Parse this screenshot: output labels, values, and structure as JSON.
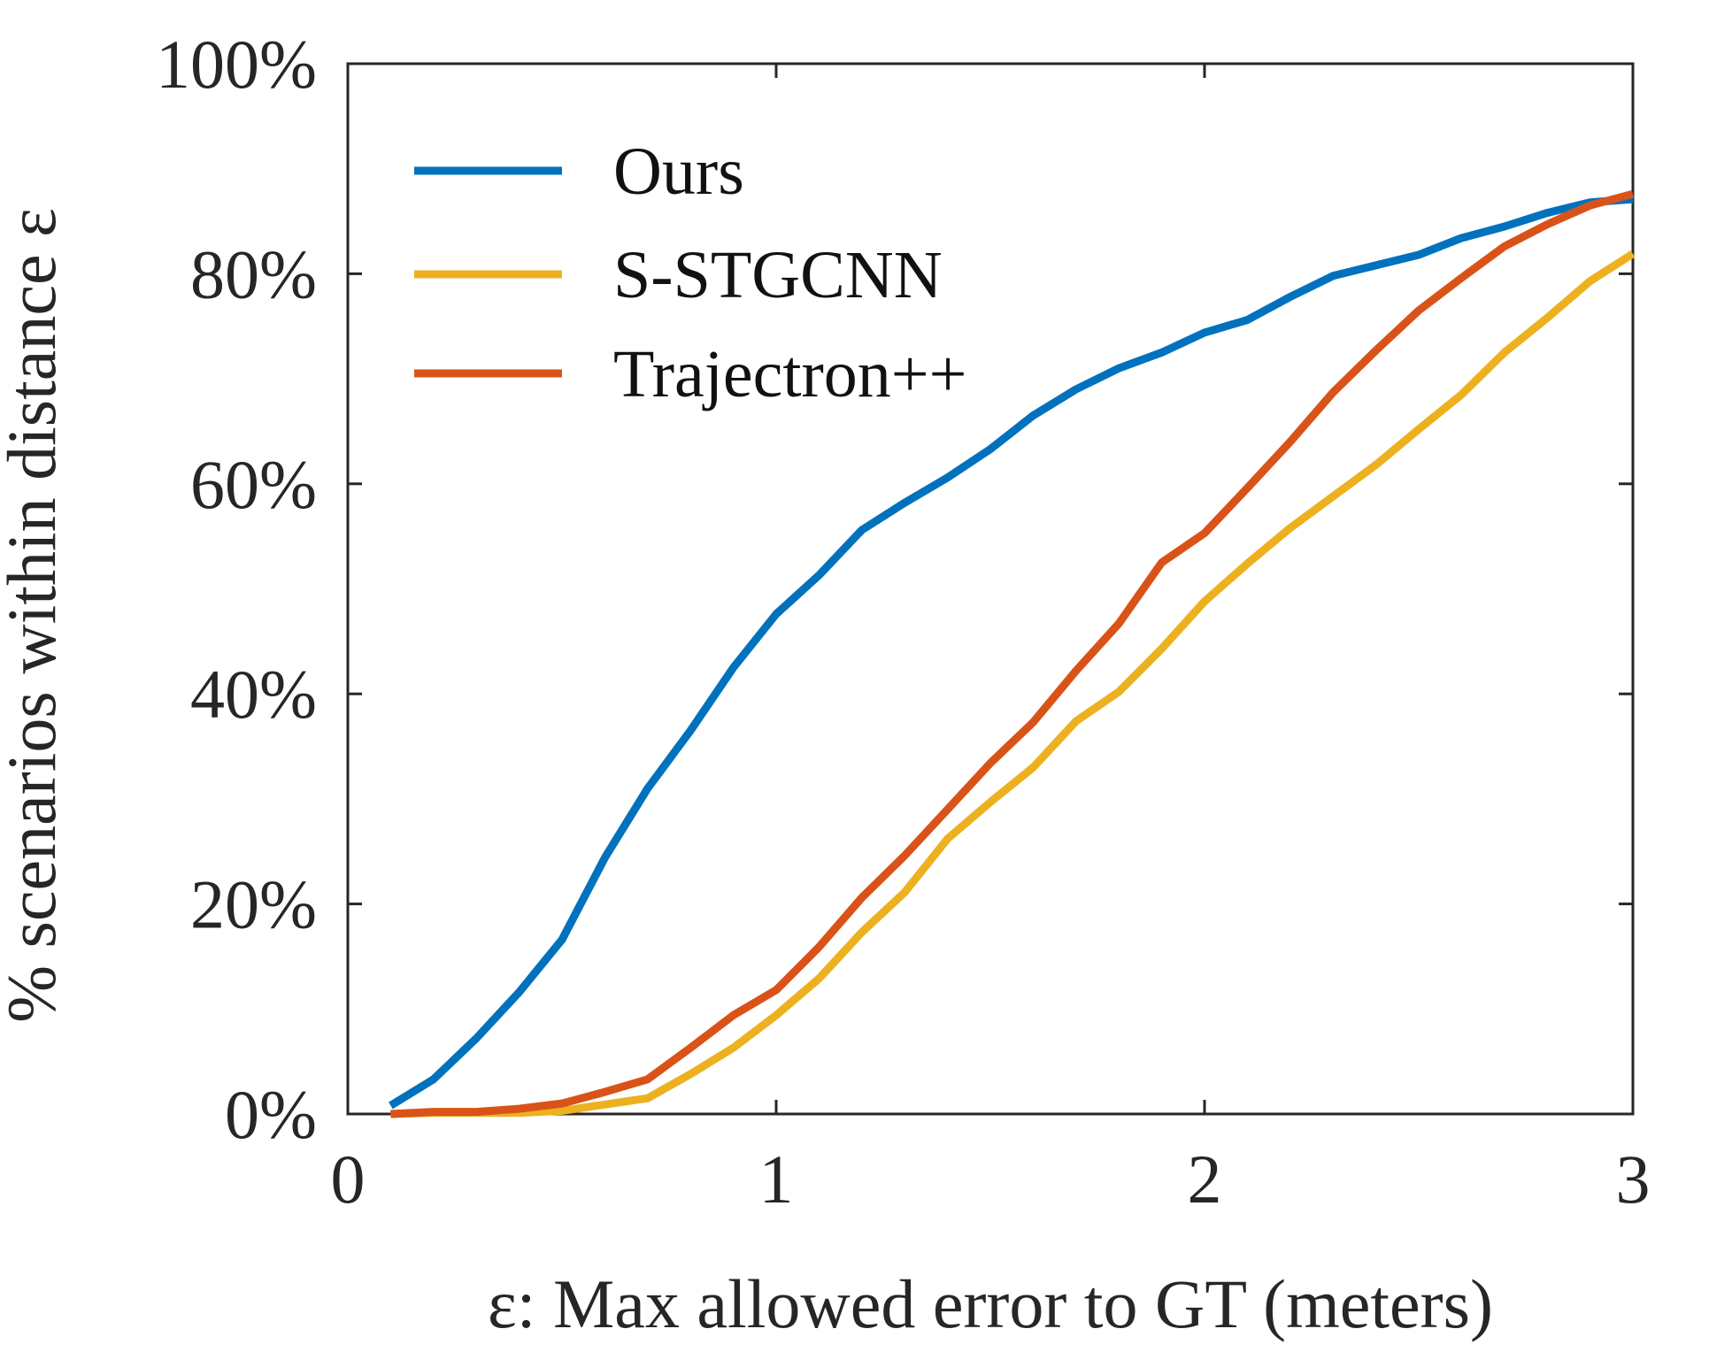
{
  "chart_data": {
    "type": "line",
    "title": "",
    "xlabel": "ε: Max allowed error to GT (meters)",
    "ylabel": "% scenarios within distance ε",
    "xlim": [
      0,
      3
    ],
    "ylim": [
      0,
      100
    ],
    "xticks": [
      0,
      1,
      2,
      3
    ],
    "xtick_labels": [
      "0",
      "1",
      "2",
      "3"
    ],
    "yticks": [
      0,
      20,
      40,
      60,
      80,
      100
    ],
    "ytick_labels": [
      "0%",
      "20%",
      "40%",
      "60%",
      "80%",
      "100%"
    ],
    "grid": false,
    "legend_position": "top-left",
    "x": [
      0.1,
      0.2,
      0.3,
      0.4,
      0.5,
      0.6,
      0.7,
      0.8,
      0.9,
      1.0,
      1.1,
      1.2,
      1.3,
      1.4,
      1.5,
      1.6,
      1.7,
      1.8,
      1.9,
      2.0,
      2.1,
      2.2,
      2.3,
      2.4,
      2.5,
      2.6,
      2.7,
      2.8,
      2.9,
      3.0
    ],
    "series": [
      {
        "name": "Ours",
        "color": "#0072bd",
        "values": [
          0.8,
          3.3,
          7.2,
          11.6,
          16.6,
          24.4,
          31.0,
          36.5,
          42.5,
          47.6,
          51.3,
          55.6,
          58.2,
          60.6,
          63.3,
          66.5,
          69.0,
          71.0,
          72.5,
          74.4,
          75.6,
          77.8,
          79.8,
          80.8,
          81.8,
          83.4,
          84.5,
          85.8,
          86.8,
          87.1
        ]
      },
      {
        "name": "S-STGCNN",
        "color": "#edb120",
        "values": [
          0.0,
          0.1,
          0.1,
          0.1,
          0.3,
          0.9,
          1.5,
          3.8,
          6.3,
          9.4,
          12.9,
          17.3,
          21.1,
          26.2,
          29.7,
          33.0,
          37.4,
          40.2,
          44.3,
          48.8,
          52.4,
          55.8,
          58.8,
          61.8,
          65.2,
          68.5,
          72.5,
          75.8,
          79.3,
          81.9
        ]
      },
      {
        "name": "Trajectron++",
        "color": "#d95319",
        "values": [
          0.0,
          0.2,
          0.2,
          0.5,
          1.0,
          2.1,
          3.3,
          6.3,
          9.4,
          11.8,
          15.9,
          20.6,
          24.6,
          29.0,
          33.4,
          37.3,
          42.2,
          46.7,
          52.5,
          55.3,
          59.6,
          64.0,
          68.7,
          72.7,
          76.5,
          79.6,
          82.6,
          84.7,
          86.5,
          87.6
        ]
      }
    ]
  }
}
